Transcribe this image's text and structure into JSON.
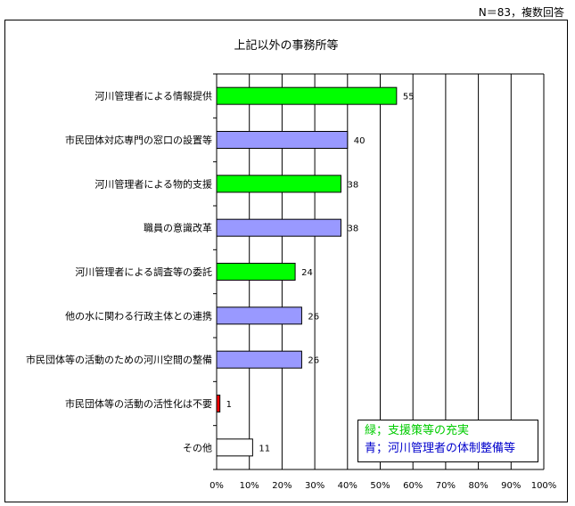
{
  "note": "N＝83，複数回答",
  "legend": {
    "green_text": "緑；支援策等の充実",
    "blue_text": "青；河川管理者の体制整備等"
  },
  "colors": {
    "green": "#00ff00",
    "blue": "#9999ff",
    "red": "#ff0000",
    "white": "#ffffff"
  },
  "chart_data": {
    "type": "bar",
    "orientation": "horizontal",
    "title": "上記以外の事務所等",
    "categories": [
      "河川管理者による情報提供",
      "市民団体対応専門の窓口の設置等",
      "河川管理者による物的支援",
      "職員の意識改革",
      "河川管理者による調査等の委託",
      "他の水に関わる行政主体との連携",
      "市民団体等の活動のための河川空間の整備",
      "市民団体等の活動の活性化は不要",
      "その他"
    ],
    "values": [
      55,
      40,
      38,
      38,
      24,
      26,
      26,
      1,
      11
    ],
    "bar_colors": [
      "green",
      "blue",
      "green",
      "blue",
      "green",
      "blue",
      "blue",
      "red",
      "white"
    ],
    "total": 83,
    "xlim": [
      0,
      100
    ],
    "xticks": [
      "0%",
      "10%",
      "20%",
      "30%",
      "40%",
      "50%",
      "60%",
      "70%",
      "80%",
      "90%",
      "100%"
    ],
    "grid": true,
    "legend_position": "bottom-right"
  }
}
